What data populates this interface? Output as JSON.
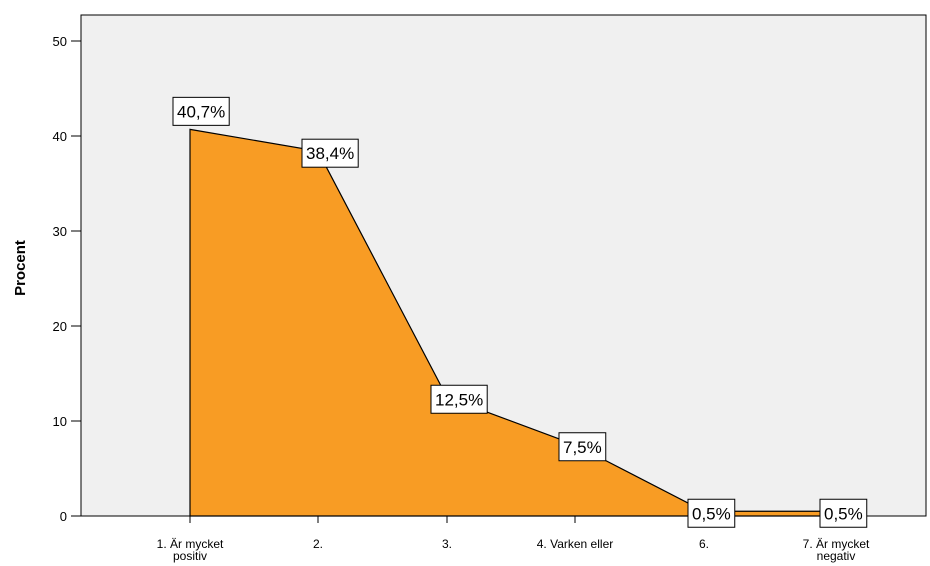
{
  "chart_data": {
    "type": "area",
    "ylabel": "Procent",
    "xlabel": "",
    "ylim": [
      0,
      50
    ],
    "yticks": [
      0,
      10,
      20,
      30,
      40,
      50
    ],
    "categories": [
      [
        "1. Är mycket",
        "positiv"
      ],
      [
        "2."
      ],
      [
        "3."
      ],
      [
        "4. Varken eller"
      ],
      [
        "6."
      ],
      [
        "7. Är mycket",
        "negativ"
      ]
    ],
    "values": [
      40.7,
      38.4,
      12.5,
      7.5,
      0.5,
      0.5
    ],
    "data_labels": [
      "40,7%",
      "38,4%",
      "12,5%",
      "7,5%",
      "0,5%",
      "0,5%"
    ],
    "fill_color": "#f89c24",
    "plot_background": "#f0f0f0",
    "grid": false,
    "legend": "none"
  }
}
